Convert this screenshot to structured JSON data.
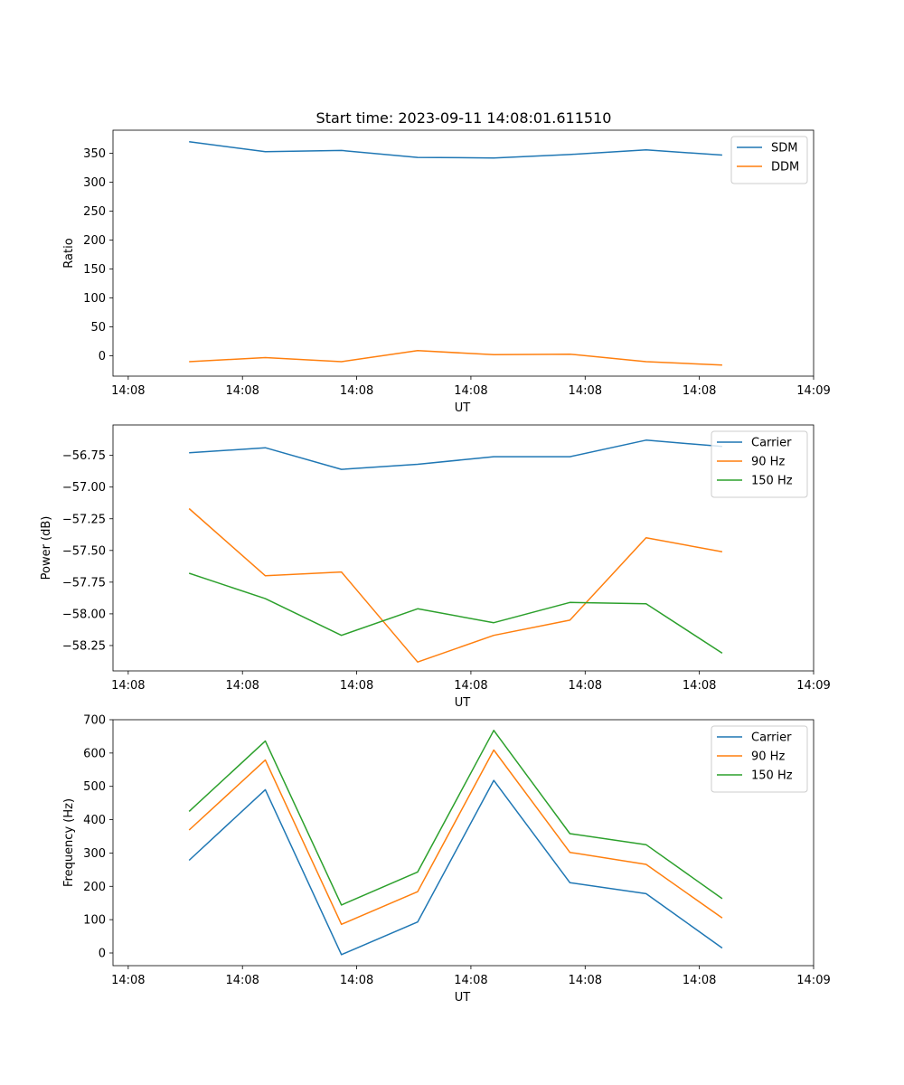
{
  "title": "Start time: 2023-09-11 14:08:01.611510",
  "colors": {
    "blue": "#1f77b4",
    "orange": "#ff7f0e",
    "green": "#2ca02c"
  },
  "chart_data": [
    {
      "type": "line",
      "title": "Start time: 2023-09-11 14:08:01.611510",
      "xlabel": "UT",
      "ylabel": "Ratio",
      "x": [
        1,
        2,
        3,
        4,
        5,
        6,
        7,
        8
      ],
      "xlim": [
        0,
        9.2
      ],
      "xticks": [
        0.2,
        1.7,
        3.2,
        4.7,
        6.2,
        7.7,
        9.2
      ],
      "xtick_labels": [
        "14:08",
        "14:08",
        "14:08",
        "14:08",
        "14:08",
        "14:08",
        "14:09"
      ],
      "ylim": [
        -35,
        390
      ],
      "yticks": [
        0,
        50,
        100,
        150,
        200,
        250,
        300,
        350
      ],
      "ytick_labels": [
        "0",
        "50",
        "100",
        "150",
        "200",
        "250",
        "300",
        "350"
      ],
      "legend": "top-right",
      "series": [
        {
          "name": "SDM",
          "color": "#1f77b4",
          "values": [
            370,
            353,
            355,
            343,
            342,
            348,
            356,
            347
          ]
        },
        {
          "name": "DDM",
          "color": "#ff7f0e",
          "values": [
            -10,
            -3,
            -10,
            9,
            2,
            3,
            -10,
            -16
          ]
        }
      ]
    },
    {
      "type": "line",
      "title": "",
      "xlabel": "UT",
      "ylabel": "Power (dB)",
      "x": [
        1,
        2,
        3,
        4,
        5,
        6,
        7,
        8
      ],
      "xlim": [
        0,
        9.2
      ],
      "xticks": [
        0.2,
        1.7,
        3.2,
        4.7,
        6.2,
        7.7,
        9.2
      ],
      "xtick_labels": [
        "14:08",
        "14:08",
        "14:08",
        "14:08",
        "14:08",
        "14:08",
        "14:09"
      ],
      "ylim": [
        -58.45,
        -56.51
      ],
      "yticks": [
        -58.25,
        -58.0,
        -57.75,
        -57.5,
        -57.25,
        -57.0,
        -56.75
      ],
      "ytick_labels": [
        "−58.25",
        "−58.00",
        "−57.75",
        "−57.50",
        "−57.25",
        "−57.00",
        "−56.75"
      ],
      "legend": "top-right",
      "series": [
        {
          "name": "Carrier",
          "color": "#1f77b4",
          "values": [
            -56.73,
            -56.69,
            -56.86,
            -56.82,
            -56.76,
            -56.76,
            -56.63,
            -56.68
          ]
        },
        {
          "name": "90 Hz",
          "color": "#ff7f0e",
          "values": [
            -57.17,
            -57.7,
            -57.67,
            -58.38,
            -58.17,
            -58.05,
            -57.4,
            -57.51
          ]
        },
        {
          "name": "150 Hz",
          "color": "#2ca02c",
          "values": [
            -57.68,
            -57.88,
            -58.17,
            -57.96,
            -58.07,
            -57.91,
            -57.92,
            -58.31
          ]
        }
      ]
    },
    {
      "type": "line",
      "title": "",
      "xlabel": "UT",
      "ylabel": "Frequency (Hz)",
      "x": [
        1,
        2,
        3,
        4,
        5,
        6,
        7,
        8
      ],
      "xlim": [
        0,
        9.2
      ],
      "xticks": [
        0.2,
        1.7,
        3.2,
        4.7,
        6.2,
        7.7,
        9.2
      ],
      "xtick_labels": [
        "14:08",
        "14:08",
        "14:08",
        "14:08",
        "14:08",
        "14:08",
        "14:09"
      ],
      "ylim": [
        -38,
        700
      ],
      "yticks": [
        0,
        100,
        200,
        300,
        400,
        500,
        600,
        700
      ],
      "ytick_labels": [
        "0",
        "100",
        "200",
        "300",
        "400",
        "500",
        "600",
        "700"
      ],
      "legend": "top-right",
      "series": [
        {
          "name": "Carrier",
          "color": "#1f77b4",
          "values": [
            278,
            490,
            -5,
            93,
            518,
            211,
            178,
            15
          ]
        },
        {
          "name": "90 Hz",
          "color": "#ff7f0e",
          "values": [
            369,
            579,
            86,
            184,
            609,
            302,
            266,
            105
          ]
        },
        {
          "name": "150 Hz",
          "color": "#2ca02c",
          "values": [
            425,
            636,
            144,
            243,
            668,
            358,
            325,
            163
          ]
        }
      ]
    }
  ]
}
